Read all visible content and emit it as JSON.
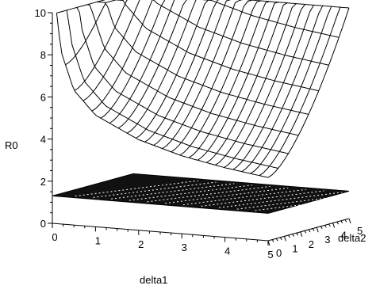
{
  "chart_data": {
    "type": "surface3d",
    "title": "",
    "xlabel": "delta1",
    "ylabel": "delta2",
    "zlabel": "R0",
    "xlim": [
      0,
      5
    ],
    "ylim": [
      0,
      5
    ],
    "zlim": [
      0,
      10
    ],
    "x_ticks": [
      "0",
      "1",
      "2",
      "3",
      "4",
      "5"
    ],
    "y_ticks": [
      "0",
      "1",
      "2",
      "3",
      "4",
      "5"
    ],
    "z_ticks": [
      "0",
      "2",
      "4",
      "6",
      "8",
      "10"
    ],
    "grid": false,
    "surfaces": [
      {
        "description": "upper surface",
        "z_at_delta1": [
          [
            0.1,
            10
          ],
          [
            0.2,
            8.2
          ],
          [
            0.5,
            6.4
          ],
          [
            1.0,
            5.3
          ],
          [
            2.0,
            4.3
          ],
          [
            3.0,
            3.7
          ],
          [
            4.0,
            3.3
          ],
          [
            5.0,
            3.0
          ]
        ],
        "z_rise_over_delta2": 7.0
      },
      {
        "description": "lower flat surface",
        "z": 1.3
      }
    ]
  },
  "colors": {
    "surface_lines": "#000000",
    "lower_surface_fill": "#111111",
    "background": "#ffffff"
  }
}
